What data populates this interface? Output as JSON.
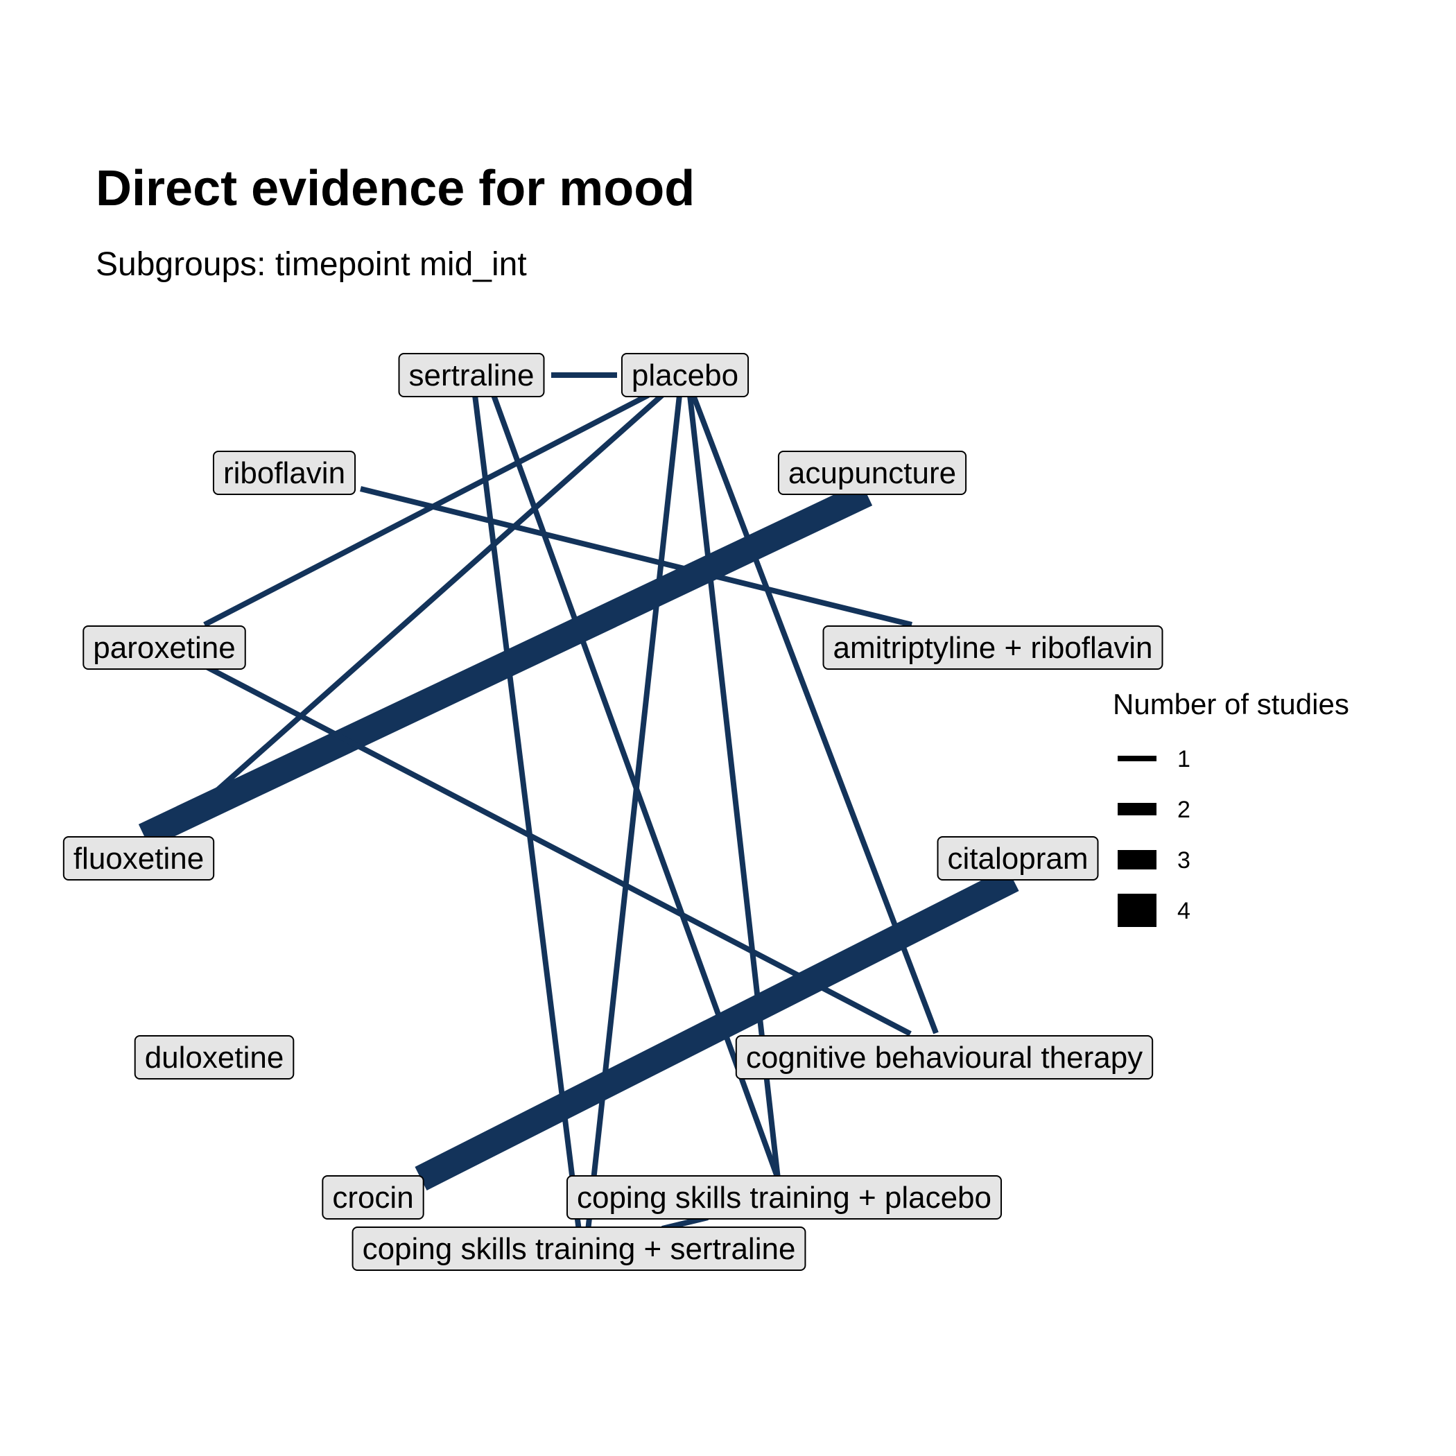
{
  "title": "Direct evidence for mood",
  "subtitle": "Subgroups: timepoint mid_int",
  "colors": {
    "edge": "#13335a",
    "node_fill": "#e5e5e5",
    "node_border": "#000000"
  },
  "nodes": [
    {
      "id": "sertraline",
      "label": "sertraline"
    },
    {
      "id": "placebo",
      "label": "placebo"
    },
    {
      "id": "riboflavin",
      "label": "riboflavin"
    },
    {
      "id": "acupuncture",
      "label": "acupuncture"
    },
    {
      "id": "paroxetine",
      "label": "paroxetine"
    },
    {
      "id": "amitriptyline_riboflavin",
      "label": "amitriptyline + riboflavin"
    },
    {
      "id": "fluoxetine",
      "label": "fluoxetine"
    },
    {
      "id": "citalopram",
      "label": "citalopram"
    },
    {
      "id": "duloxetine",
      "label": "duloxetine"
    },
    {
      "id": "cbt",
      "label": "cognitive behavioural therapy"
    },
    {
      "id": "crocin",
      "label": "crocin"
    },
    {
      "id": "cst_placebo",
      "label": "coping skills training + placebo"
    },
    {
      "id": "cst_sertraline",
      "label": "coping skills training + sertraline"
    }
  ],
  "edges": [
    {
      "from": "sertraline",
      "to": "placebo",
      "studies": 1
    },
    {
      "from": "placebo",
      "to": "paroxetine",
      "studies": 1
    },
    {
      "from": "placebo",
      "to": "fluoxetine",
      "studies": 1
    },
    {
      "from": "placebo",
      "to": "cst_sertraline",
      "studies": 1
    },
    {
      "from": "placebo",
      "to": "cst_placebo",
      "studies": 1
    },
    {
      "from": "placebo",
      "to": "cbt",
      "studies": 1
    },
    {
      "from": "sertraline",
      "to": "cst_sertraline",
      "studies": 1
    },
    {
      "from": "sertraline",
      "to": "cst_placebo",
      "studies": 1
    },
    {
      "from": "riboflavin",
      "to": "amitriptyline_riboflavin",
      "studies": 1
    },
    {
      "from": "acupuncture",
      "to": "fluoxetine",
      "studies": 4
    },
    {
      "from": "paroxetine",
      "to": "cbt",
      "studies": 1
    },
    {
      "from": "citalopram",
      "to": "crocin",
      "studies": 4
    },
    {
      "from": "cst_placebo",
      "to": "cst_sertraline",
      "studies": 1
    }
  ],
  "legend": {
    "title": "Number of studies",
    "items": [
      {
        "label": "1",
        "studies": 1
      },
      {
        "label": "2",
        "studies": 2
      },
      {
        "label": "3",
        "studies": 3
      },
      {
        "label": "4",
        "studies": 4
      }
    ]
  }
}
